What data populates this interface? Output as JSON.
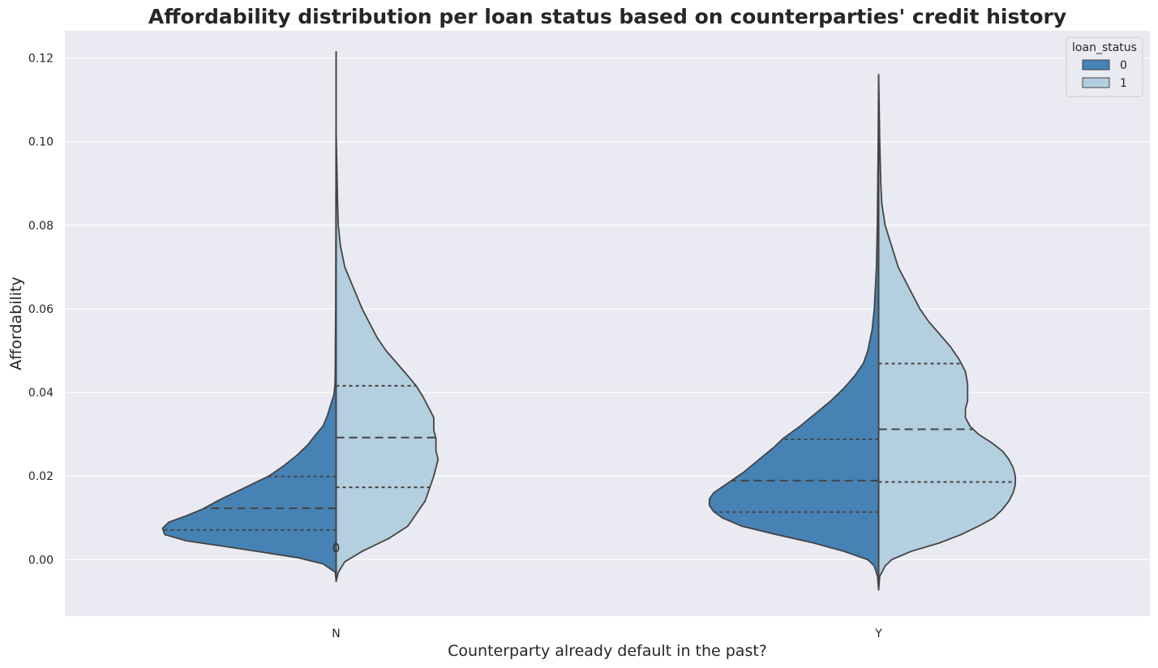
{
  "chart_data": {
    "type": "violin",
    "title": "Affordability distribution per loan status based on counterparties' credit history",
    "xlabel": "Counterparty already default in the past?",
    "ylabel": "Affordability",
    "categories": [
      "N",
      "Y"
    ],
    "ylim": [
      -0.0135,
      0.1265
    ],
    "yticks": [
      "0.00",
      "0.02",
      "0.04",
      "0.06",
      "0.08",
      "0.10",
      "0.12"
    ],
    "grid": true,
    "split": true,
    "inner": "quartile",
    "legend": {
      "title": "loan_status",
      "position": "top-right",
      "entries": [
        "0",
        "1"
      ]
    },
    "colors": {
      "0": "#4682b4",
      "1": "#b3cfe0",
      "background": "#eaeaf2",
      "outline": "#444444"
    },
    "annotation": {
      "text": "0",
      "category": "N",
      "y": 0.0028
    },
    "series": [
      {
        "name": "0",
        "side": "left",
        "violins": [
          {
            "category": "N",
            "range": [
              -0.0052,
              0.1215
            ],
            "quartiles": [
              0.0071,
              0.0123,
              0.0199
            ],
            "density": [
              [
                -0.0052,
                0
              ],
              [
                -0.003,
                0.004
              ],
              [
                -0.001,
                0.06
              ],
              [
                0.0005,
                0.18
              ],
              [
                0.0018,
                0.34
              ],
              [
                0.0033,
                0.53
              ],
              [
                0.0045,
                0.69
              ],
              [
                0.006,
                0.79
              ],
              [
                0.0075,
                0.8
              ],
              [
                0.009,
                0.77
              ],
              [
                0.0105,
                0.69
              ],
              [
                0.012,
                0.62
              ],
              [
                0.0145,
                0.53
              ],
              [
                0.0175,
                0.41
              ],
              [
                0.02,
                0.31
              ],
              [
                0.0225,
                0.24
              ],
              [
                0.025,
                0.18
              ],
              [
                0.0275,
                0.13
              ],
              [
                0.0295,
                0.1
              ],
              [
                0.032,
                0.06
              ],
              [
                0.0345,
                0.04
              ],
              [
                0.037,
                0.025
              ],
              [
                0.0395,
                0.01
              ],
              [
                0.042,
                0.005
              ],
              [
                0.045,
                0.004
              ],
              [
                0.05,
                0.0035
              ],
              [
                0.06,
                0.002
              ],
              [
                0.08,
                0.001
              ],
              [
                0.1,
                0.0005
              ],
              [
                0.1215,
                0
              ]
            ]
          },
          {
            "category": "Y",
            "range": [
              -0.0072,
              0.116
            ],
            "quartiles": [
              0.0114,
              0.0189,
              0.0288
            ],
            "density": [
              [
                -0.0072,
                0
              ],
              [
                -0.004,
                0.005
              ],
              [
                -0.0015,
                0.02
              ],
              [
                0,
                0.05
              ],
              [
                0.002,
                0.16
              ],
              [
                0.004,
                0.3
              ],
              [
                0.006,
                0.47
              ],
              [
                0.008,
                0.63
              ],
              [
                0.01,
                0.72
              ],
              [
                0.0115,
                0.76
              ],
              [
                0.013,
                0.78
              ],
              [
                0.0145,
                0.78
              ],
              [
                0.016,
                0.76
              ],
              [
                0.0185,
                0.69
              ],
              [
                0.021,
                0.62
              ],
              [
                0.024,
                0.55
              ],
              [
                0.027,
                0.48
              ],
              [
                0.029,
                0.44
              ],
              [
                0.032,
                0.36
              ],
              [
                0.035,
                0.29
              ],
              [
                0.038,
                0.22
              ],
              [
                0.041,
                0.16
              ],
              [
                0.044,
                0.11
              ],
              [
                0.047,
                0.07
              ],
              [
                0.05,
                0.05
              ],
              [
                0.055,
                0.03
              ],
              [
                0.06,
                0.02
              ],
              [
                0.065,
                0.015
              ],
              [
                0.07,
                0.01
              ],
              [
                0.08,
                0.006
              ],
              [
                0.09,
                0.004
              ],
              [
                0.1,
                0.002
              ],
              [
                0.116,
                0
              ]
            ]
          }
        ]
      },
      {
        "name": "1",
        "side": "right",
        "violins": [
          {
            "category": "N",
            "range": [
              -0.0052,
              0.103
            ],
            "quartiles": [
              0.0173,
              0.0292,
              0.0416
            ],
            "density": [
              [
                -0.0052,
                0
              ],
              [
                -0.003,
                0.01
              ],
              [
                -0.0005,
                0.04
              ],
              [
                0.002,
                0.12
              ],
              [
                0.005,
                0.24
              ],
              [
                0.008,
                0.33
              ],
              [
                0.011,
                0.37
              ],
              [
                0.014,
                0.41
              ],
              [
                0.017,
                0.43
              ],
              [
                0.02,
                0.45
              ],
              [
                0.022,
                0.46
              ],
              [
                0.024,
                0.47
              ],
              [
                0.026,
                0.46
              ],
              [
                0.029,
                0.46
              ],
              [
                0.031,
                0.45
              ],
              [
                0.034,
                0.45
              ],
              [
                0.036,
                0.43
              ],
              [
                0.039,
                0.4
              ],
              [
                0.0415,
                0.37
              ],
              [
                0.044,
                0.33
              ],
              [
                0.047,
                0.28
              ],
              [
                0.05,
                0.23
              ],
              [
                0.053,
                0.19
              ],
              [
                0.056,
                0.16
              ],
              [
                0.06,
                0.12
              ],
              [
                0.065,
                0.08
              ],
              [
                0.07,
                0.04
              ],
              [
                0.075,
                0.02
              ],
              [
                0.08,
                0.01
              ],
              [
                0.085,
                0.007
              ],
              [
                0.09,
                0.005
              ],
              [
                0.095,
                0.003
              ],
              [
                0.1,
                0.001
              ],
              [
                0.103,
                0
              ]
            ]
          },
          {
            "category": "Y",
            "range": [
              -0.0072,
              0.116
            ],
            "quartiles": [
              0.0186,
              0.0312,
              0.0469
            ],
            "density": [
              [
                -0.0072,
                0
              ],
              [
                -0.004,
                0.005
              ],
              [
                -0.0015,
                0.03
              ],
              [
                0,
                0.06
              ],
              [
                0.002,
                0.15
              ],
              [
                0.004,
                0.28
              ],
              [
                0.006,
                0.38
              ],
              [
                0.008,
                0.46
              ],
              [
                0.01,
                0.53
              ],
              [
                0.012,
                0.57
              ],
              [
                0.014,
                0.6
              ],
              [
                0.016,
                0.62
              ],
              [
                0.018,
                0.63
              ],
              [
                0.02,
                0.63
              ],
              [
                0.022,
                0.62
              ],
              [
                0.024,
                0.6
              ],
              [
                0.026,
                0.57
              ],
              [
                0.028,
                0.52
              ],
              [
                0.03,
                0.46
              ],
              [
                0.032,
                0.42
              ],
              [
                0.034,
                0.4
              ],
              [
                0.036,
                0.4
              ],
              [
                0.038,
                0.41
              ],
              [
                0.04,
                0.41
              ],
              [
                0.042,
                0.41
              ],
              [
                0.045,
                0.4
              ],
              [
                0.048,
                0.37
              ],
              [
                0.051,
                0.33
              ],
              [
                0.054,
                0.28
              ],
              [
                0.057,
                0.23
              ],
              [
                0.06,
                0.19
              ],
              [
                0.065,
                0.14
              ],
              [
                0.07,
                0.09
              ],
              [
                0.075,
                0.06
              ],
              [
                0.08,
                0.03
              ],
              [
                0.085,
                0.015
              ],
              [
                0.09,
                0.01
              ],
              [
                0.1,
                0.005
              ],
              [
                0.11,
                0.002
              ],
              [
                0.116,
                0
              ]
            ]
          }
        ]
      }
    ]
  }
}
